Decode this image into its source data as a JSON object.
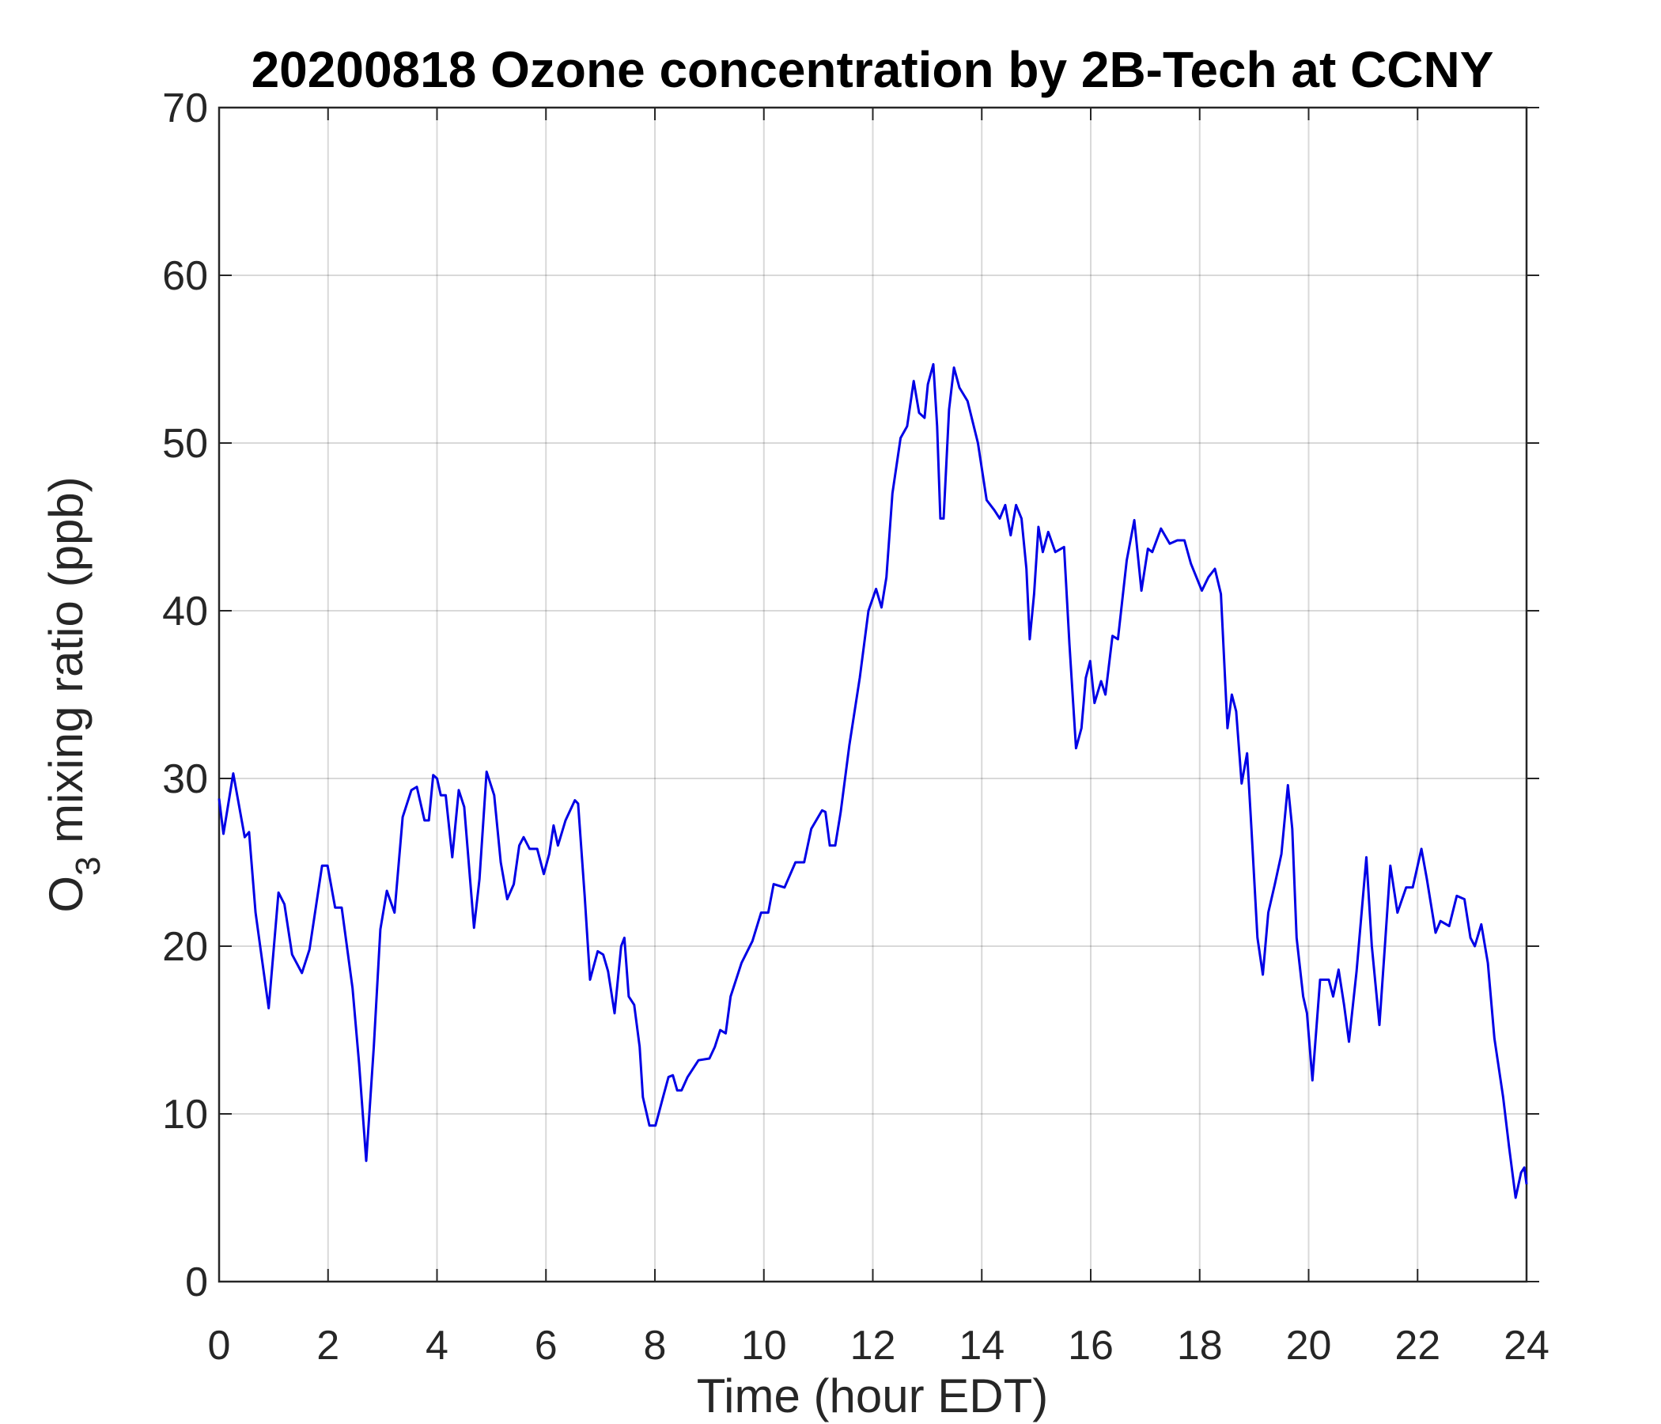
{
  "chart_data": {
    "type": "line",
    "title": "20200818 Ozone concentration by 2B-Tech at CCNY",
    "xlabel": "Time (hour EDT)",
    "ylabel": {
      "main": "O",
      "sub": "3",
      "rest": " mixing ratio (ppb)"
    },
    "xlim": [
      0,
      24
    ],
    "xticks": [
      0,
      2,
      4,
      6,
      8,
      10,
      12,
      14,
      16,
      18,
      20,
      22,
      24
    ],
    "ylim": [
      0,
      70
    ],
    "yticks": [
      0,
      10,
      20,
      30,
      40,
      50,
      60,
      70
    ],
    "grid": true,
    "x": [
      0,
      0.08,
      0.26,
      0.47,
      0.55,
      0.67,
      0.91,
      1.09,
      1.2,
      1.34,
      1.52,
      1.66,
      1.89,
      1.99,
      2.13,
      2.25,
      2.45,
      2.57,
      2.7,
      2.84,
      2.96,
      3.08,
      3.22,
      3.37,
      3.53,
      3.63,
      3.77,
      3.85,
      3.93,
      4.0,
      4.07,
      4.16,
      4.28,
      4.4,
      4.5,
      4.68,
      4.78,
      4.91,
      5.05,
      5.17,
      5.29,
      5.41,
      5.51,
      5.59,
      5.7,
      5.84,
      5.96,
      6.06,
      6.14,
      6.22,
      6.36,
      6.53,
      6.59,
      6.71,
      6.81,
      6.95,
      7.05,
      7.14,
      7.26,
      7.38,
      7.44,
      7.52,
      7.62,
      7.72,
      7.78,
      7.9,
      8.01,
      8.15,
      8.25,
      8.33,
      8.41,
      8.49,
      8.6,
      8.8,
      9.0,
      9.1,
      9.2,
      9.3,
      9.39,
      9.59,
      9.79,
      9.95,
      10.08,
      10.18,
      10.38,
      10.58,
      10.74,
      10.87,
      11.07,
      11.13,
      11.21,
      11.31,
      11.41,
      11.57,
      11.76,
      11.92,
      12.06,
      12.16,
      12.25,
      12.36,
      12.51,
      12.63,
      12.75,
      12.85,
      12.95,
      13.01,
      13.11,
      13.18,
      13.24,
      13.3,
      13.4,
      13.49,
      13.59,
      13.74,
      13.93,
      14.09,
      14.23,
      14.33,
      14.43,
      14.53,
      14.63,
      14.73,
      14.82,
      14.88,
      14.96,
      15.04,
      15.12,
      15.22,
      15.35,
      15.51,
      15.61,
      15.73,
      15.83,
      15.91,
      15.99,
      16.07,
      16.19,
      16.27,
      16.4,
      16.5,
      16.66,
      16.8,
      16.93,
      17.05,
      17.13,
      17.29,
      17.45,
      17.59,
      17.72,
      17.84,
      18.04,
      18.16,
      18.28,
      18.39,
      18.51,
      18.59,
      18.67,
      18.77,
      18.87,
      18.95,
      19.06,
      19.16,
      19.26,
      19.38,
      19.5,
      19.62,
      19.7,
      19.78,
      19.9,
      19.97,
      20.07,
      20.21,
      20.37,
      20.45,
      20.55,
      20.65,
      20.74,
      20.88,
      21.06,
      21.16,
      21.3,
      21.4,
      21.5,
      21.63,
      21.79,
      21.91,
      22.07,
      22.17,
      22.33,
      22.42,
      22.58,
      22.72,
      22.86,
      22.97,
      23.05,
      23.17,
      23.29,
      23.41,
      23.57,
      23.68,
      23.8,
      23.9,
      23.96,
      24.0
    ],
    "series": [
      {
        "color": "#0000e6",
        "values": [
          28.8,
          26.7,
          30.3,
          26.5,
          26.8,
          22,
          16.3,
          23.2,
          22.5,
          19.5,
          18.4,
          19.8,
          24.8,
          24.8,
          22.3,
          22.3,
          17.5,
          13,
          7.2,
          14,
          21,
          23.3,
          22,
          27.7,
          29.3,
          29.5,
          27.5,
          27.5,
          30.2,
          30,
          29,
          29,
          25.3,
          29.3,
          28.3,
          21.1,
          24,
          30.4,
          29,
          25,
          22.8,
          23.7,
          26,
          26.5,
          25.8,
          25.8,
          24.3,
          25.5,
          27.2,
          26,
          27.5,
          28.7,
          28.5,
          23,
          18,
          19.7,
          19.5,
          18.5,
          16,
          20,
          20.5,
          17,
          16.5,
          14,
          11,
          9.3,
          9.3,
          11,
          12.2,
          12.3,
          11.4,
          11.4,
          12.2,
          13.2,
          13.3,
          14,
          15,
          14.8,
          17,
          19,
          20.3,
          22,
          22,
          23.7,
          23.5,
          25,
          25,
          27,
          28.1,
          28,
          26,
          26,
          28,
          32,
          36,
          40,
          41.3,
          40.2,
          42,
          47,
          50.3,
          51,
          53.7,
          51.8,
          51.5,
          53.5,
          54.7,
          51,
          45.5,
          45.5,
          52,
          54.5,
          53.3,
          52.5,
          50,
          46.6,
          46,
          45.5,
          46.3,
          44.5,
          46.3,
          45.5,
          42.5,
          38.3,
          41,
          45,
          43.5,
          44.7,
          43.5,
          43.8,
          38,
          31.8,
          33,
          36,
          37,
          34.5,
          35.8,
          35,
          38.5,
          38.3,
          43,
          45.4,
          41.2,
          43.7,
          43.5,
          44.9,
          44,
          44.2,
          44.2,
          42.8,
          41.2,
          42,
          42.5,
          41,
          33,
          35,
          34,
          29.7,
          31.5,
          27,
          20.5,
          18.3,
          22,
          23.7,
          25.5,
          29.6,
          27,
          20.5,
          17,
          16,
          12,
          18,
          18,
          17,
          18.6,
          16.5,
          14.3,
          18.5,
          25.3,
          20,
          15.3,
          20,
          24.8,
          22,
          23.5,
          23.5,
          25.8,
          24,
          20.8,
          21.5,
          21.2,
          23,
          22.8,
          20.5,
          20,
          21.3,
          19,
          14.5,
          11,
          8,
          5,
          6.5,
          6.8,
          5.8
        ]
      }
    ]
  }
}
